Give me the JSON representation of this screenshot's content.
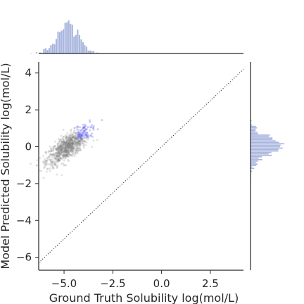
{
  "chart_data": {
    "type": "scatter",
    "xlabel": "Ground Truth Solubility log(mol/L)",
    "ylabel": "Model Predicted Solubility log(mol/L)",
    "xlim": [
      -6.3,
      4.2
    ],
    "ylim": [
      -6.7,
      4.6
    ],
    "x_ticks": [
      {
        "value": -5.0,
        "label": "−5.0"
      },
      {
        "value": -2.5,
        "label": "−2.5"
      },
      {
        "value": 0.0,
        "label": "0.0"
      },
      {
        "value": 2.5,
        "label": "2.5"
      }
    ],
    "y_ticks": [
      {
        "value": -6,
        "label": "−6"
      },
      {
        "value": -4,
        "label": "−4"
      },
      {
        "value": -2,
        "label": "−2"
      },
      {
        "value": 0,
        "label": "0"
      },
      {
        "value": 2,
        "label": "2"
      },
      {
        "value": 4,
        "label": "4"
      }
    ],
    "reference_line": {
      "style": "dotted",
      "color": "#333333",
      "from": [
        -6.3,
        -6.3
      ],
      "to": [
        4.2,
        4.2
      ]
    },
    "scatter_cluster": {
      "x_center": -4.8,
      "y_center": 0.0,
      "x_spread": 0.55,
      "y_spread": 0.5,
      "correlation": 0.75,
      "n_points": 900,
      "point_color": "#808080",
      "highlight_color": "#7070ee"
    },
    "marginals": {
      "x_hist_color": "#9aa9d8",
      "y_hist_color": "#9aa9d8",
      "bins": 40
    },
    "grid": false,
    "legend": "none"
  }
}
